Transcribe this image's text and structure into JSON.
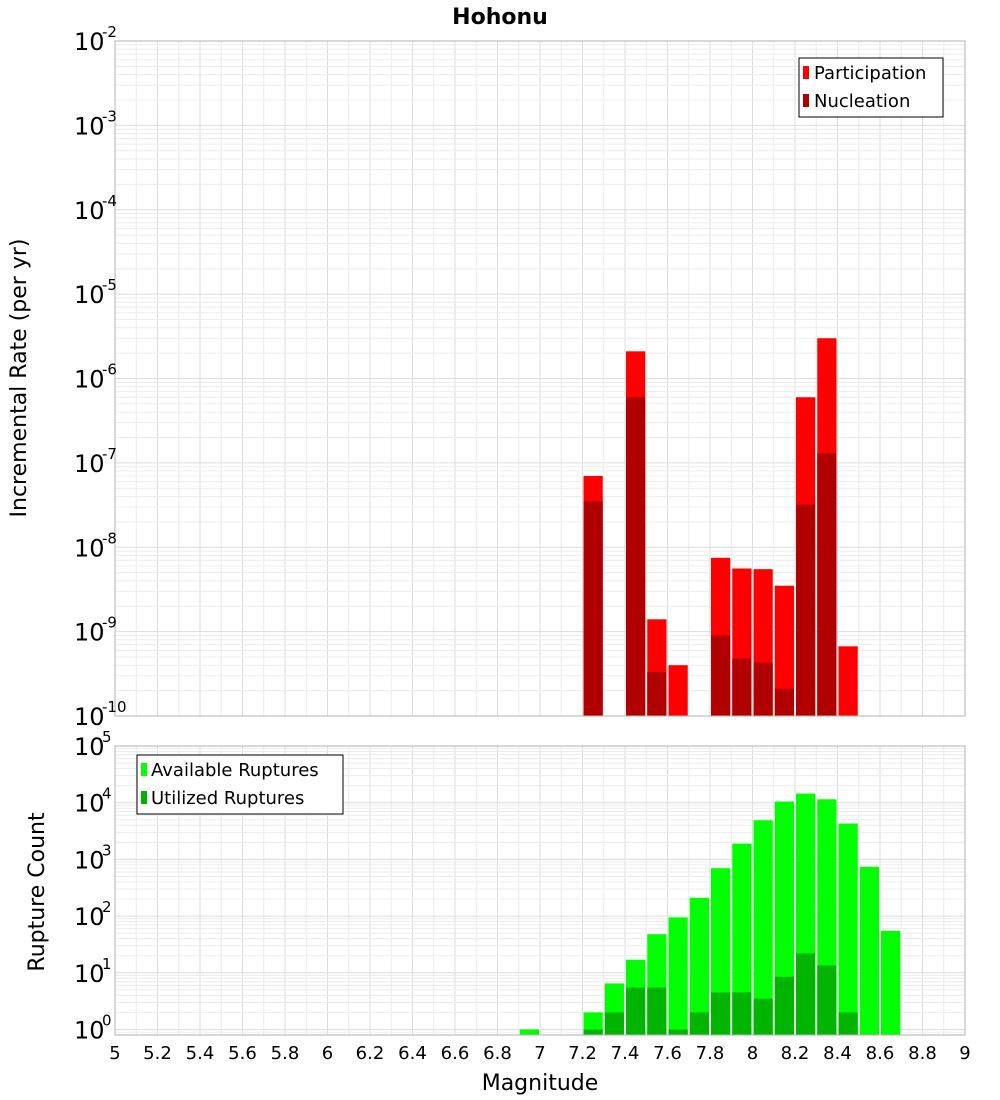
{
  "chart_data": [
    {
      "type": "bar",
      "title": "Hohonu",
      "ylabel": "Incremental Rate (per yr)",
      "yscale": "log",
      "ylim": [
        1e-10,
        0.01
      ],
      "xlim": [
        5,
        9
      ],
      "grid": true,
      "legend_position": "top-right",
      "bin_width": 0.1,
      "x": [
        7.25,
        7.45,
        7.55,
        7.65,
        7.85,
        7.95,
        8.05,
        8.15,
        8.25,
        8.35,
        8.45
      ],
      "series": [
        {
          "name": "Participation",
          "color": "#ff0000",
          "values": [
            7e-08,
            2.1e-06,
            1.4e-09,
            4e-10,
            7.5e-09,
            5.6e-09,
            5.5e-09,
            3.5e-09,
            6e-07,
            3e-06,
            6.7e-10
          ]
        },
        {
          "name": "Nucleation",
          "color": "#b00000",
          "values": [
            3.5e-08,
            6e-07,
            3.3e-10,
            null,
            9e-10,
            4.8e-10,
            4.3e-10,
            2.1e-10,
            3.2e-08,
            1.3e-07,
            null
          ]
        }
      ],
      "y_ticks": [
        {
          "base": "10",
          "exp": "-2",
          "value": 0.01
        },
        {
          "base": "10",
          "exp": "-3",
          "value": 0.001
        },
        {
          "base": "10",
          "exp": "-4",
          "value": 0.0001
        },
        {
          "base": "10",
          "exp": "-5",
          "value": 1e-05
        },
        {
          "base": "10",
          "exp": "-6",
          "value": 1e-06
        },
        {
          "base": "10",
          "exp": "-7",
          "value": 1e-07
        },
        {
          "base": "10",
          "exp": "-8",
          "value": 1e-08
        },
        {
          "base": "10",
          "exp": "-9",
          "value": 1e-09
        },
        {
          "base": "10",
          "exp": "-10",
          "value": 1e-10
        }
      ]
    },
    {
      "type": "bar",
      "ylabel": "Rupture Count",
      "xlabel": "Magnitude",
      "yscale": "log",
      "ylim": [
        0.8,
        100000
      ],
      "xlim": [
        5,
        9
      ],
      "grid": true,
      "legend_position": "top-left",
      "bin_width": 0.1,
      "x": [
        6.95,
        7.25,
        7.35,
        7.45,
        7.55,
        7.65,
        7.75,
        7.85,
        7.95,
        8.05,
        8.15,
        8.25,
        8.35,
        8.45,
        8.55,
        8.65
      ],
      "series": [
        {
          "name": "Available Ruptures",
          "color": "#00ff00",
          "values": [
            1,
            2,
            6.5,
            17,
            48,
            95,
            210,
            700,
            1900,
            4900,
            10500,
            14500,
            11500,
            4300,
            740,
            55
          ]
        },
        {
          "name": "Utilized Ruptures",
          "color": "#00b400",
          "values": [
            null,
            1,
            2,
            5.5,
            5.5,
            1,
            2,
            4.5,
            4.5,
            3.5,
            8.5,
            22,
            13.5,
            2,
            null,
            null
          ]
        }
      ],
      "y_ticks": [
        {
          "base": "10",
          "exp": "5",
          "value": 100000
        },
        {
          "base": "10",
          "exp": "4",
          "value": 10000
        },
        {
          "base": "10",
          "exp": "3",
          "value": 1000
        },
        {
          "base": "10",
          "exp": "2",
          "value": 100
        },
        {
          "base": "10",
          "exp": "1",
          "value": 10
        },
        {
          "base": "10",
          "exp": "0",
          "value": 1
        }
      ],
      "x_tick_labels": [
        "5",
        "5.2",
        "5.4",
        "5.6",
        "5.8",
        "6",
        "6.2",
        "6.4",
        "6.6",
        "6.8",
        "7",
        "7.2",
        "7.4",
        "7.6",
        "7.8",
        "8",
        "8.2",
        "8.4",
        "8.6",
        "8.8",
        "9"
      ]
    }
  ]
}
